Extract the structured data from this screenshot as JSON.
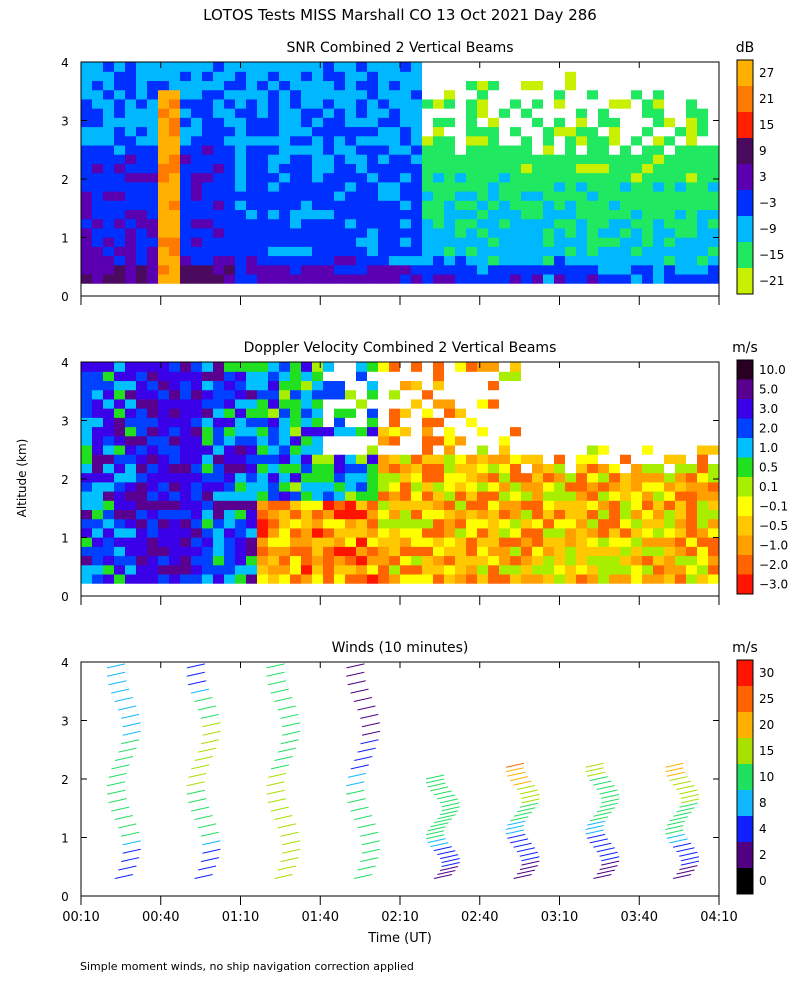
{
  "header": {
    "title": "LOTOS Tests MISS Marshall CO  13 Oct 2021 Day 286"
  },
  "shared": {
    "ylabel": "Altitude (km)",
    "xlabel": "Time (UT)",
    "y_ticks": [
      "0",
      "1",
      "2",
      "3",
      "4"
    ],
    "x_ticks": [
      "00:10",
      "00:40",
      "01:10",
      "01:40",
      "02:10",
      "02:40",
      "03:10",
      "03:40",
      "04:10"
    ],
    "footnote": "Simple moment winds, no ship navigation correction applied"
  },
  "chart_data": [
    {
      "type": "heatmap",
      "title": "SNR Combined 2 Vertical Beams",
      "unit": "dB",
      "x_range": [
        "00:10",
        "04:10"
      ],
      "ylim": [
        0,
        4
      ],
      "colorbar": {
        "labels": [
          "27",
          "21",
          "15",
          "9",
          "3",
          "−3",
          "−9",
          "−15",
          "−21"
        ],
        "colors": [
          "#ffb000",
          "#ff7a00",
          "#ff2000",
          "#4a0a5e",
          "#5a00b0",
          "#0030ff",
          "#00b8ff",
          "#20e860",
          "#c8f000"
        ]
      },
      "features": [
        {
          "time": "00:42",
          "value_db": "27",
          "note": "strong echo column 0.2–3.5 km"
        }
      ]
    },
    {
      "type": "heatmap",
      "title": "Doppler Velocity Combined 2 Vertical Beams",
      "unit": "m/s",
      "x_range": [
        "00:10",
        "04:10"
      ],
      "ylim": [
        0,
        4
      ],
      "colorbar": {
        "labels": [
          "10.0",
          "5.0",
          "3.0",
          "2.0",
          "1.0",
          "0.5",
          "0.1",
          "−0.1",
          "−0.5",
          "−1.0",
          "−2.0",
          "−3.0"
        ],
        "colors": [
          "#2a0022",
          "#5a0090",
          "#3a00e8",
          "#0040ff",
          "#00c0ff",
          "#20e020",
          "#a8ee00",
          "#ffff00",
          "#ffc800",
          "#ffa000",
          "#ff6400",
          "#ff1400"
        ]
      }
    },
    {
      "type": "scatter",
      "title": "Winds (10 minutes)",
      "unit": "m/s",
      "x_range": [
        "00:10",
        "04:10"
      ],
      "ylim": [
        0,
        4
      ],
      "colorbar": {
        "labels": [
          "30",
          "25",
          "20",
          "15",
          "10",
          "8",
          "4",
          "2",
          "0"
        ],
        "colors": [
          "#ff1400",
          "#ff6400",
          "#ffb000",
          "#a8e000",
          "#20e060",
          "#10b8ff",
          "#1020ff",
          "#500080",
          "#000000"
        ]
      },
      "profiles": [
        {
          "time": "00:25",
          "alt_min_km": 0.3,
          "alt_max_km": 3.9,
          "speed_ms": [
            4,
            14,
            10,
            8
          ]
        },
        {
          "time": "00:55",
          "alt_min_km": 0.3,
          "alt_max_km": 3.9,
          "speed_ms": [
            4,
            14,
            18,
            4
          ]
        },
        {
          "time": "01:25",
          "alt_min_km": 0.3,
          "alt_max_km": 3.9,
          "speed_ms": [
            16,
            18,
            12,
            14
          ]
        },
        {
          "time": "01:55",
          "alt_min_km": 0.3,
          "alt_max_km": 3.9,
          "speed_ms": [
            12,
            12,
            4,
            2
          ]
        },
        {
          "time": "02:25",
          "alt_min_km": 0.3,
          "alt_max_km": 2.0,
          "speed_ms": [
            2,
            12,
            14
          ]
        },
        {
          "time": "02:55",
          "alt_min_km": 0.3,
          "alt_max_km": 2.2,
          "speed_ms": [
            2,
            10,
            26
          ]
        },
        {
          "time": "03:25",
          "alt_min_km": 0.3,
          "alt_max_km": 2.2,
          "speed_ms": [
            2,
            10,
            16
          ]
        },
        {
          "time": "03:55",
          "alt_min_km": 0.3,
          "alt_max_km": 2.2,
          "speed_ms": [
            2,
            12,
            22
          ]
        }
      ]
    }
  ]
}
